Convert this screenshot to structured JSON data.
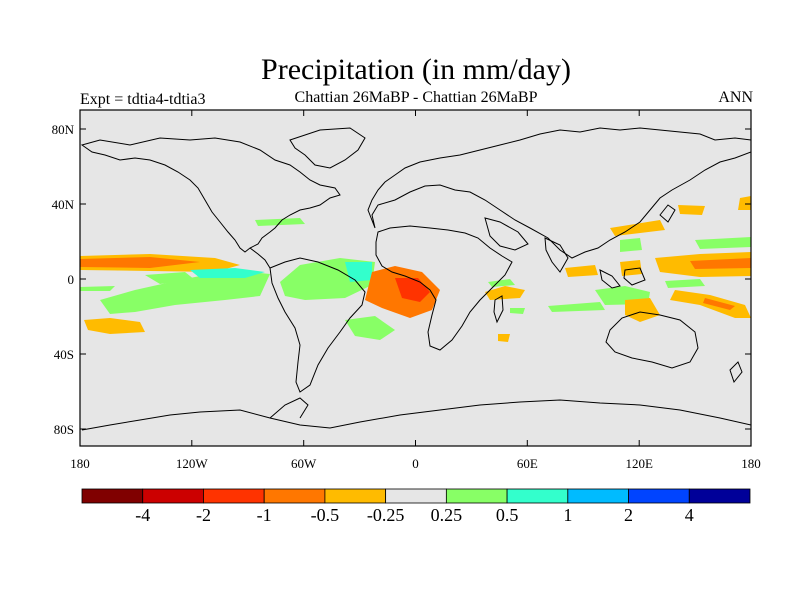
{
  "title": "Precipitation (in mm/day)",
  "subtitle": "Chattian  26MaBP - Chattian  26MaBP",
  "left_label": "Expt = tdtia4-tdtia3",
  "right_label": "ANN",
  "chart_data": {
    "type": "map",
    "variable": "Precipitation (in mm/day)",
    "season": "ANN",
    "projection": "cylindrical-equidistant",
    "lon_range": [
      -180,
      180
    ],
    "lat_range": [
      -90,
      90
    ],
    "x_ticks": [
      "180",
      "120W",
      "60W",
      "0",
      "60E",
      "120E",
      "180"
    ],
    "y_ticks": [
      "80N",
      "40N",
      "0",
      "40S",
      "80S"
    ],
    "background_color": "#e6e6e6",
    "colorbar": {
      "colors": [
        "#800000",
        "#cc0000",
        "#ff3300",
        "#ff7700",
        "#ffbb00",
        "#e6e6e6",
        "#88ff66",
        "#33ffcc",
        "#00bbff",
        "#0044ff",
        "#000099"
      ],
      "labels": [
        "-4",
        "-2",
        "-1",
        "-0.5",
        "-0.25",
        "0.25",
        "0.5",
        "1",
        "2",
        "4"
      ]
    }
  }
}
